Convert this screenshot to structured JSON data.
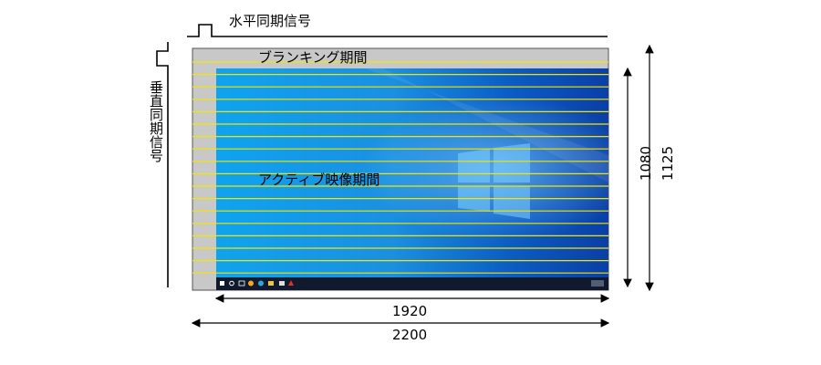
{
  "labels": {
    "hsync": "水平同期信号",
    "vsync": "垂直同期信号",
    "blanking": "ブランキング期間",
    "active": "アクティブ映像期間"
  },
  "dimensions": {
    "active_width": "1920",
    "total_width": "2200",
    "active_height": "1080",
    "total_height": "1125"
  },
  "colors": {
    "blanking_gray": "#c8c8c8",
    "scan_line": "#f2e600",
    "desktop_blue": "#0a78d7",
    "taskbar": "#101a2c"
  },
  "icons": [
    "windows-logo-icon",
    "start-icon",
    "search-icon",
    "taskview-icon",
    "browser-icon",
    "folder-icon",
    "store-icon",
    "mail-icon",
    "app-icon"
  ]
}
